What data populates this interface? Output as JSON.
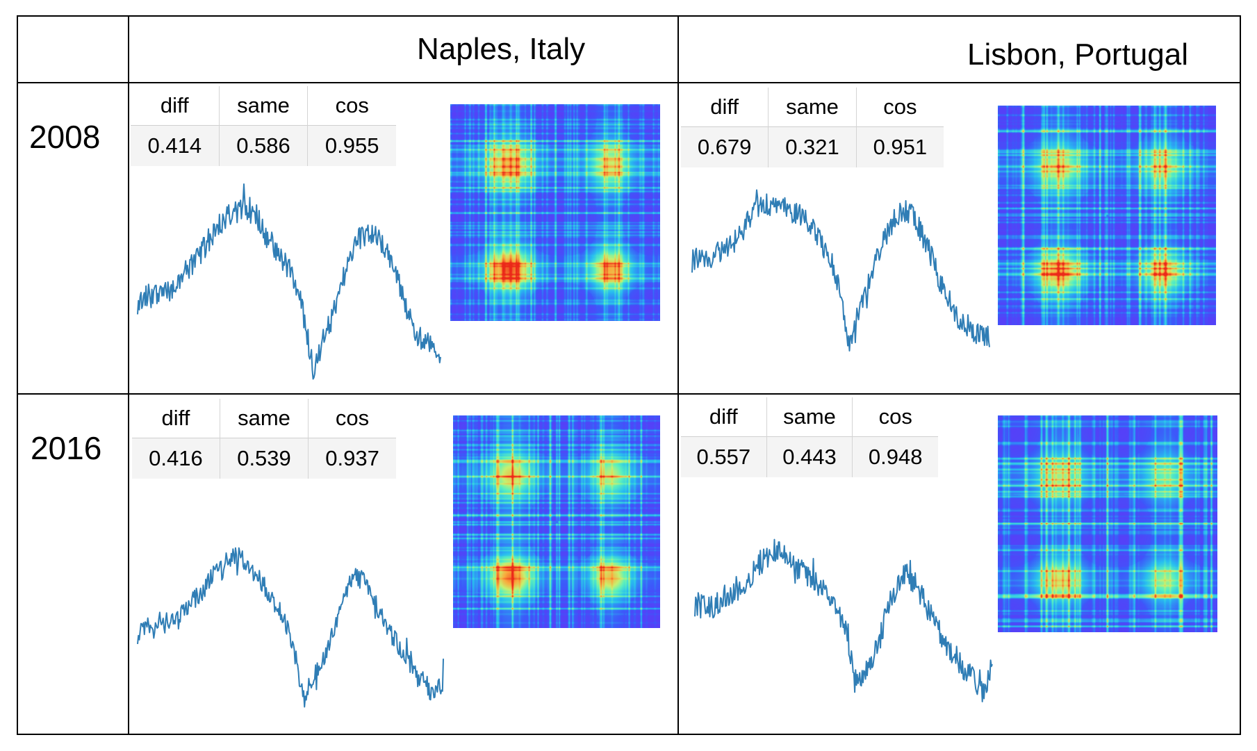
{
  "columns": [
    {
      "id": "naples",
      "title": "Naples, Italy"
    },
    {
      "id": "lisbon",
      "title": "Lisbon, Portugal"
    }
  ],
  "rows": [
    {
      "id": "2008",
      "label": "2008"
    },
    {
      "id": "2016",
      "label": "2016"
    }
  ],
  "stat_headers": [
    "diff",
    "same",
    "cos"
  ],
  "colors": {
    "line": "#2f7db5",
    "grid": "#000000"
  },
  "chart_data": [
    {
      "type": "table",
      "city": "Naples, Italy",
      "year": "2008",
      "headers": [
        "diff",
        "same",
        "cos"
      ],
      "values": [
        "0.414",
        "0.586",
        "0.955"
      ]
    },
    {
      "type": "table",
      "city": "Lisbon, Portugal",
      "year": "2008",
      "headers": [
        "diff",
        "same",
        "cos"
      ],
      "values": [
        "0.679",
        "0.321",
        "0.951"
      ]
    },
    {
      "type": "table",
      "city": "Naples, Italy",
      "year": "2016",
      "headers": [
        "diff",
        "same",
        "cos"
      ],
      "values": [
        "0.416",
        "0.539",
        "0.937"
      ]
    },
    {
      "type": "table",
      "city": "Lisbon, Portugal",
      "year": "2016",
      "headers": [
        "diff",
        "same",
        "cos"
      ],
      "values": [
        "0.557",
        "0.443",
        "0.948"
      ]
    },
    {
      "type": "line",
      "city": "Naples, Italy",
      "year": "2008",
      "y": [
        0.4,
        0.44,
        0.43,
        0.47,
        0.46,
        0.5,
        0.55,
        0.6,
        0.66,
        0.72,
        0.78,
        0.83,
        0.86,
        0.87,
        0.86,
        0.84,
        0.73,
        0.7,
        0.62,
        0.58,
        0.48,
        0.3,
        0.06,
        0.18,
        0.28,
        0.4,
        0.55,
        0.66,
        0.72,
        0.76,
        0.74,
        0.68,
        0.58,
        0.46,
        0.34,
        0.24,
        0.2,
        0.18,
        0.14
      ],
      "noise": 0.06,
      "shape": "naples"
    },
    {
      "type": "line",
      "city": "Lisbon, Portugal",
      "year": "2008",
      "y": [
        0.58,
        0.6,
        0.59,
        0.62,
        0.64,
        0.68,
        0.72,
        0.8,
        0.86,
        0.88,
        0.87,
        0.86,
        0.84,
        0.82,
        0.78,
        0.72,
        0.64,
        0.56,
        0.4,
        0.16,
        0.3,
        0.42,
        0.56,
        0.68,
        0.76,
        0.82,
        0.84,
        0.8,
        0.7,
        0.6,
        0.48,
        0.38,
        0.3,
        0.26,
        0.22,
        0.2,
        0.18
      ],
      "noise": 0.06,
      "shape": "lisbon"
    },
    {
      "type": "line",
      "city": "Naples, Italy",
      "year": "2016",
      "y": [
        0.45,
        0.48,
        0.46,
        0.5,
        0.52,
        0.56,
        0.6,
        0.64,
        0.7,
        0.76,
        0.81,
        0.84,
        0.82,
        0.78,
        0.72,
        0.66,
        0.58,
        0.5,
        0.35,
        0.12,
        0.22,
        0.3,
        0.42,
        0.56,
        0.68,
        0.74,
        0.7,
        0.62,
        0.54,
        0.46,
        0.38,
        0.3,
        0.24,
        0.2,
        0.14,
        0.22
      ],
      "noise": 0.05,
      "shape": "naples"
    },
    {
      "type": "line",
      "city": "Lisbon, Portugal",
      "year": "2016",
      "y": [
        0.58,
        0.6,
        0.57,
        0.6,
        0.62,
        0.66,
        0.7,
        0.76,
        0.82,
        0.86,
        0.84,
        0.8,
        0.76,
        0.72,
        0.68,
        0.64,
        0.58,
        0.5,
        0.28,
        0.16,
        0.26,
        0.38,
        0.54,
        0.66,
        0.74,
        0.7,
        0.62,
        0.52,
        0.44,
        0.36,
        0.3,
        0.24,
        0.2,
        0.12,
        0.28
      ],
      "noise": 0.06,
      "shape": "lisbon"
    },
    {
      "type": "heatmap",
      "city": "Naples, Italy",
      "year": "2008",
      "peak": 1.0
    },
    {
      "type": "heatmap",
      "city": "Lisbon, Portugal",
      "year": "2008",
      "peak": 0.78
    },
    {
      "type": "heatmap",
      "city": "Naples, Italy",
      "year": "2016",
      "peak": 0.92
    },
    {
      "type": "heatmap",
      "city": "Lisbon, Portugal",
      "year": "2016",
      "peak": 0.62
    }
  ]
}
